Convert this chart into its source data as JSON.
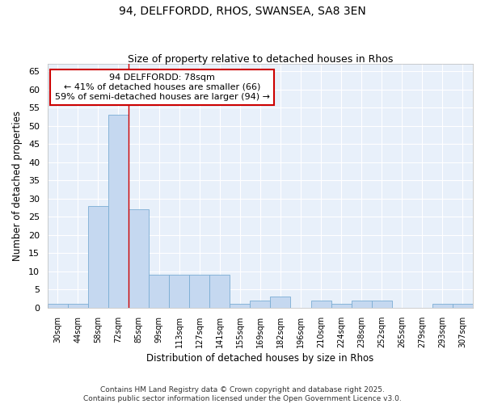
{
  "title1": "94, DELFFORDD, RHOS, SWANSEA, SA8 3EN",
  "title2": "Size of property relative to detached houses in Rhos",
  "xlabel": "Distribution of detached houses by size in Rhos",
  "ylabel": "Number of detached properties",
  "categories": [
    "30sqm",
    "44sqm",
    "58sqm",
    "72sqm",
    "85sqm",
    "99sqm",
    "113sqm",
    "127sqm",
    "141sqm",
    "155sqm",
    "169sqm",
    "182sqm",
    "196sqm",
    "210sqm",
    "224sqm",
    "238sqm",
    "252sqm",
    "265sqm",
    "279sqm",
    "293sqm",
    "307sqm"
  ],
  "values": [
    1,
    1,
    28,
    53,
    27,
    9,
    9,
    9,
    9,
    1,
    2,
    3,
    0,
    2,
    1,
    2,
    2,
    0,
    0,
    1,
    1
  ],
  "bar_color": "#c5d8f0",
  "bar_edge_color": "#7aadd4",
  "fig_bg_color": "#ffffff",
  "plot_bg_color": "#e8f0fa",
  "grid_color": "#ffffff",
  "red_line_x": 3.5,
  "annotation_text": "94 DELFFORDD: 78sqm\n← 41% of detached houses are smaller (66)\n59% of semi-detached houses are larger (94) →",
  "annotation_box_color": "#ffffff",
  "annotation_box_edge_color": "#cc0000",
  "ylim": [
    0,
    67
  ],
  "yticks": [
    0,
    5,
    10,
    15,
    20,
    25,
    30,
    35,
    40,
    45,
    50,
    55,
    60,
    65
  ],
  "footer": "Contains HM Land Registry data © Crown copyright and database right 2025.\nContains public sector information licensed under the Open Government Licence v3.0."
}
